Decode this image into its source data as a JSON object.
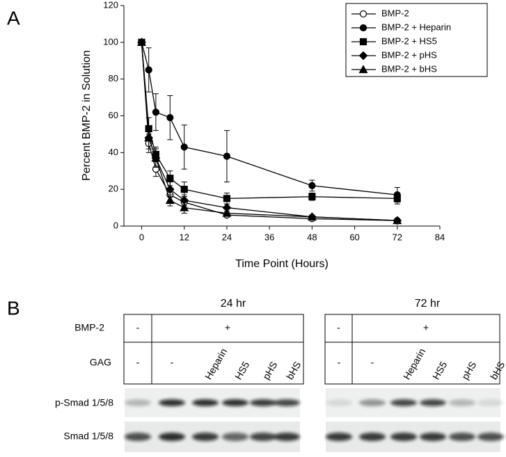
{
  "chart_data": {
    "type": "line",
    "panel_label": "A",
    "xlabel": "Time Point (Hours)",
    "ylabel": "Percent BMP-2 in Solution",
    "x": [
      0,
      2,
      4,
      8,
      12,
      24,
      48,
      72
    ],
    "xlim": [
      -5,
      84
    ],
    "xticks": [
      0,
      12,
      24,
      36,
      48,
      60,
      72,
      84
    ],
    "ylim": [
      0,
      120
    ],
    "yticks": [
      0,
      20,
      40,
      60,
      80,
      100,
      120
    ],
    "legend": "upper right",
    "grid": false,
    "series": [
      {
        "name": "BMP-2",
        "color": "#000000",
        "marker": "open-circle",
        "values": [
          100,
          45,
          31,
          17,
          13,
          6,
          4,
          3
        ],
        "errors": [
          1,
          5,
          4,
          3,
          3,
          1,
          1,
          1
        ]
      },
      {
        "name": "BMP-2 + Heparin",
        "color": "#000000",
        "marker": "circle",
        "values": [
          100,
          85,
          62,
          59,
          43,
          38,
          22,
          17
        ],
        "errors": [
          1,
          12,
          10,
          12,
          12,
          14,
          3,
          4
        ]
      },
      {
        "name": "BMP-2 + HS5",
        "color": "#000000",
        "marker": "square",
        "values": [
          100,
          53,
          39,
          26,
          20,
          15,
          16,
          15
        ],
        "errors": [
          1,
          6,
          4,
          4,
          4,
          3,
          2,
          3
        ]
      },
      {
        "name": "BMP-2 + pHS",
        "color": "#000000",
        "marker": "diamond",
        "values": [
          100,
          48,
          37,
          20,
          14,
          10,
          5,
          3
        ],
        "errors": [
          1,
          6,
          5,
          4,
          3,
          2,
          1,
          1
        ]
      },
      {
        "name": "BMP-2 + bHS",
        "color": "#000000",
        "marker": "triangle",
        "values": [
          100,
          48,
          37,
          14,
          10,
          7,
          5,
          3
        ],
        "errors": [
          1,
          6,
          5,
          3,
          3,
          1,
          1,
          1
        ]
      }
    ]
  },
  "blot": {
    "panel_label": "B",
    "row_labels": {
      "bmp2": "BMP-2",
      "gag": "GAG",
      "psmad": "p-Smad 1/5/8",
      "smad": "Smad 1/5/8"
    },
    "groups": [
      {
        "title": "24 hr",
        "bmp2": [
          "-",
          "+"
        ],
        "gag": [
          "-",
          "-",
          "Heparin",
          "HS5",
          "pHS",
          "bHS"
        ]
      },
      {
        "title": "72 hr",
        "bmp2": [
          "-",
          "+"
        ],
        "gag": [
          "-",
          "-",
          "Heparin",
          "HS5",
          "pHS",
          "bHS"
        ]
      }
    ]
  }
}
